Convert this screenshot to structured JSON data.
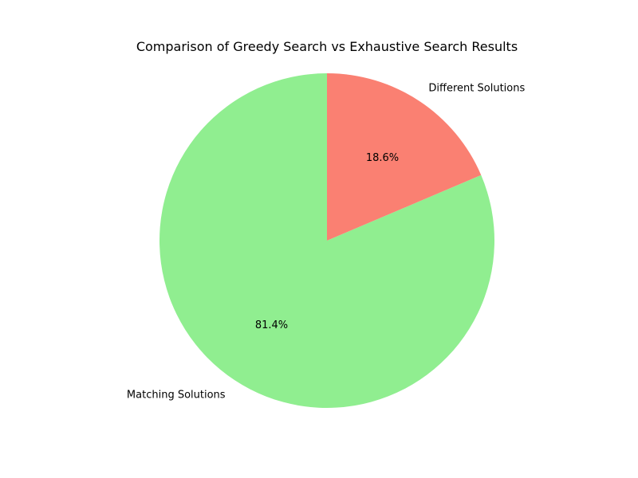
{
  "chart_data": {
    "type": "pie",
    "title": "Comparison of Greedy Search vs Exhaustive Search Results",
    "start_angle_deg": 90,
    "direction": "counterclockwise",
    "slices": [
      {
        "label": "Matching Solutions",
        "value": 81.4,
        "pct_label": "81.4%",
        "color": "#90EE90"
      },
      {
        "label": "Different Solutions",
        "value": 18.6,
        "pct_label": "18.6%",
        "color": "#FA8072"
      }
    ]
  }
}
